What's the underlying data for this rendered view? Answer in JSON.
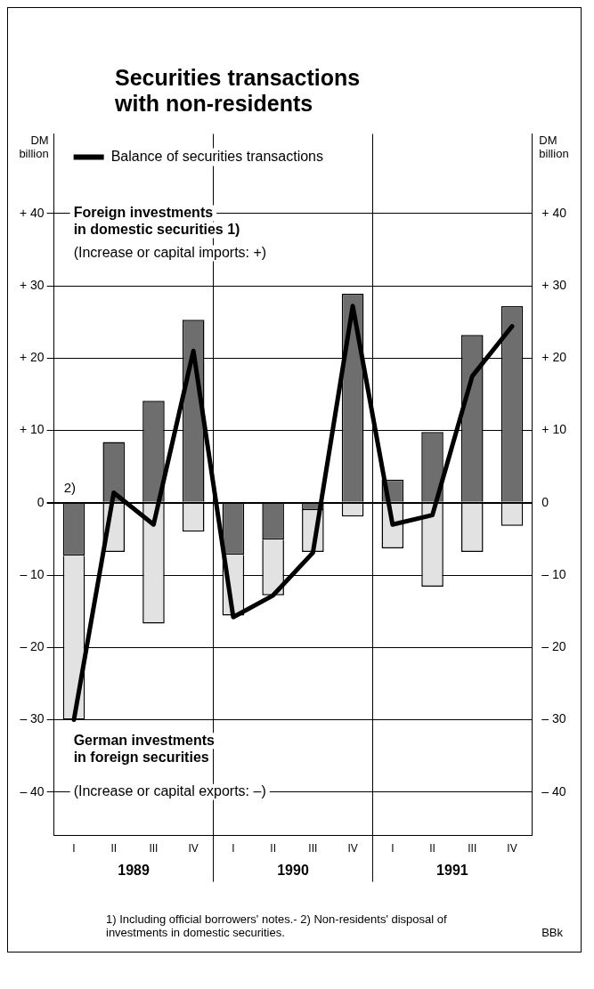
{
  "chart_data": {
    "type": "bar",
    "title": "Securities transactions with non-residents",
    "ylabel": "DM billion",
    "y2label": "DM billion",
    "categories": [
      "I",
      "II",
      "III",
      "IV",
      "I",
      "II",
      "III",
      "IV",
      "I",
      "II",
      "III",
      "IV"
    ],
    "series": [
      {
        "color": "#6e6e6e",
        "values": [
          -7.3,
          8.4,
          14.1,
          25.3,
          -7.2,
          -5.1,
          -1,
          28.9,
          3.2,
          9.8,
          23.2,
          27.2
        ]
      },
      {
        "color": "#e2e2e2",
        "values": [
          -22.7,
          -6.8,
          -16.7,
          -4,
          -8.4,
          -7.7,
          -5.8,
          -1.9,
          -6.3,
          -11.6,
          -6.8,
          -3.2
        ]
      },
      {
        "type": "line",
        "name": "Balance of securities transactions",
        "color": "#000000",
        "values": [
          -30,
          1.4,
          -3,
          21,
          -15.8,
          -12.8,
          -6.9,
          27.2,
          -3,
          -1.7,
          17.5,
          24.4
        ]
      }
    ],
    "stacked": true,
    "ylim": [
      -46,
      51
    ],
    "y2lim": [
      -46,
      51
    ],
    "yticks": [
      {
        "value": 40,
        "label": "+ 40"
      },
      {
        "value": 30,
        "label": "+ 30"
      },
      {
        "value": 20,
        "label": "+ 20"
      },
      {
        "value": 10,
        "label": "+ 10"
      },
      0,
      {
        "value": -10,
        "label": "– 10"
      },
      {
        "value": -20,
        "label": "– 20"
      },
      {
        "value": -30,
        "label": "– 30"
      },
      {
        "value": -40,
        "label": "– 40"
      }
    ],
    "y2ticks": [
      {
        "value": 40,
        "label": "+ 40"
      },
      {
        "value": 30,
        "label": "+ 30"
      },
      {
        "value": 20,
        "label": "+ 20"
      },
      {
        "value": 10,
        "label": "+ 10"
      },
      0,
      {
        "value": -10,
        "label": "– 10"
      },
      {
        "value": -20,
        "label": "– 20"
      },
      {
        "value": -30,
        "label": "– 30"
      },
      {
        "value": -40,
        "label": "– 40"
      }
    ],
    "grid": true,
    "legend": "top left",
    "line_style": "solid",
    "annotations": [
      "Foreign investments\nin domestic securities 1)",
      "(Increase or capital imports: +)",
      "German investments\nin foreign securities",
      "(Increase or capital exports: –)",
      "2)",
      "1989",
      "1990",
      "1991",
      "1) Including official borrowers' notes.- 2) Non-residents' disposal of investments in domestic securities.",
      "BBk"
    ]
  }
}
